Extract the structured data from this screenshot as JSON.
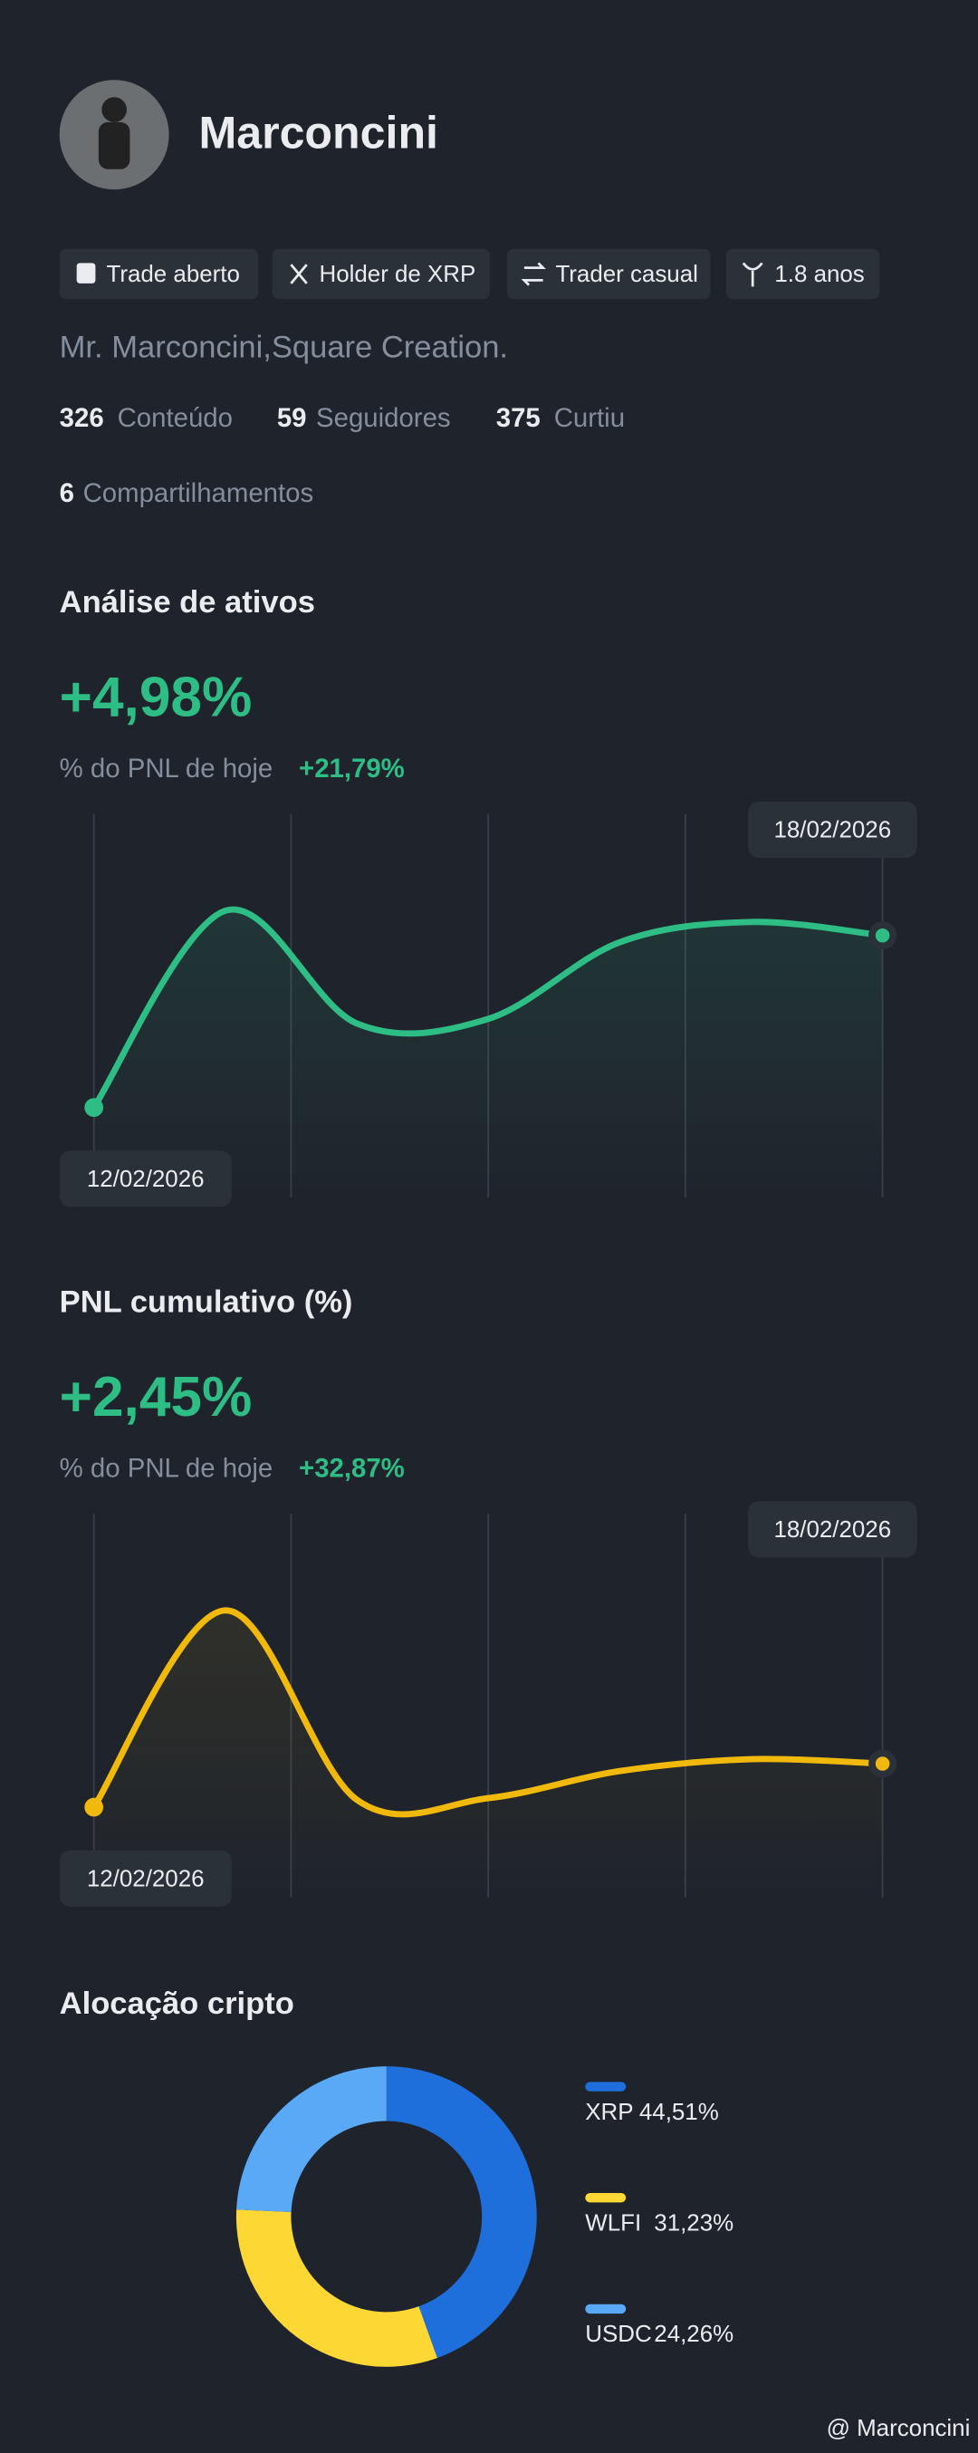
{
  "profile": {
    "name": "Marconcini",
    "tags": [
      "Trade aberto",
      "Holder de XRP",
      "Trader casual",
      "1.8 anos"
    ],
    "bio": "Mr. Marconcini,Square Creation.",
    "stats": [
      {
        "value": 326,
        "label": "Conteúdo"
      },
      {
        "value": 59,
        "label": "Seguidores"
      },
      {
        "value": 375,
        "label": "Curtiu"
      },
      {
        "value": 6,
        "label": "Compartilhamentos"
      }
    ]
  },
  "footer": "@ Marconcini",
  "chart_data": [
    {
      "type": "line",
      "title": "Análise de ativos",
      "headline": "+4,98%",
      "subtitle": "% do PNL de hoje",
      "today_change": "+21,79%",
      "categories": [
        "12/02/2026",
        null,
        null,
        null,
        null,
        null,
        "18/02/2026"
      ],
      "values": [
        8.7,
        96,
        46,
        48,
        82,
        91,
        85
      ],
      "color": "#2ebd85",
      "ylim": [
        0,
        100
      ]
    },
    {
      "type": "line",
      "title": "PNL cumulativo (%)",
      "headline": "+2,45%",
      "subtitle": "% do PNL de hoje",
      "today_change": "+32,87%",
      "categories": [
        "12/02/2026",
        null,
        null,
        null,
        null,
        null,
        "18/02/2026"
      ],
      "values": [
        8.7,
        96,
        12,
        12.7,
        24.7,
        30,
        28
      ],
      "color": "#f0b90b",
      "ylim": [
        0,
        100
      ]
    },
    {
      "type": "pie",
      "title": "Alocação cripto",
      "categories": [
        "XRP",
        "WLFI",
        "USDC"
      ],
      "values": [
        44.51,
        31.23,
        24.26
      ],
      "value_labels": [
        "44,51%",
        "31,23%",
        "24,26%"
      ],
      "colors": [
        "#1e6fdc",
        "#fdd835",
        "#5aa9f7"
      ]
    }
  ]
}
